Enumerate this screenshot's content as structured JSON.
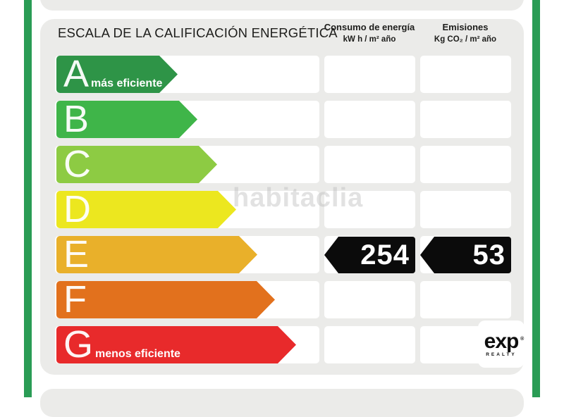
{
  "title": "ESCALA DE LA CALIFICACIÓN ENERGÉTICA",
  "columns": {
    "consumption": {
      "name": "Consumo de energía",
      "unit": "kW h / m² año"
    },
    "emissions": {
      "name": "Emisiones",
      "unit": "Kg CO₂ / m² año"
    }
  },
  "scale": [
    {
      "letter": "A",
      "label": "más eficiente",
      "color": "#2e9447",
      "arrow_width": 172
    },
    {
      "letter": "B",
      "label": "",
      "color": "#3fb549",
      "arrow_width": 200
    },
    {
      "letter": "C",
      "label": "",
      "color": "#8dcb43",
      "arrow_width": 228
    },
    {
      "letter": "D",
      "label": "",
      "color": "#ece71f",
      "arrow_width": 255
    },
    {
      "letter": "E",
      "label": "",
      "color": "#e9b02a",
      "arrow_width": 285
    },
    {
      "letter": "F",
      "label": "",
      "color": "#e2711d",
      "arrow_width": 310
    },
    {
      "letter": "G",
      "label": "menos eficiente",
      "color": "#e82a2b",
      "arrow_width": 340
    }
  ],
  "result": {
    "rating": "E",
    "consumption_value": "254",
    "emissions_value": "53",
    "marker_color": "#0b0b0b"
  },
  "watermark": "habitaclia",
  "logo": {
    "brand": "exp",
    "trademark": "®",
    "sub": "REALTY"
  },
  "colors": {
    "frame": "#2a9c55",
    "card": "#ebebe9",
    "row_bg": "#ffffff"
  },
  "chart_data": {
    "type": "bar",
    "title": "ESCALA DE LA CALIFICACIÓN ENERGÉTICA",
    "categories": [
      "A",
      "B",
      "C",
      "D",
      "E",
      "F",
      "G"
    ],
    "values": [
      172,
      200,
      228,
      255,
      285,
      310,
      340
    ],
    "values_note": "relative arrow lengths of the rating scale (decorative, increasing A→G)",
    "category_labels": {
      "A": "más eficiente",
      "G": "menos eficiente"
    },
    "columns": [
      "Consumo de energía kW h / m² año",
      "Emisiones Kg CO₂ / m² año"
    ],
    "rating": "E",
    "consumo_kwh_m2_ano": 254,
    "emisiones_kgco2_m2_ano": 53,
    "legend_position": "none",
    "grid": false
  }
}
